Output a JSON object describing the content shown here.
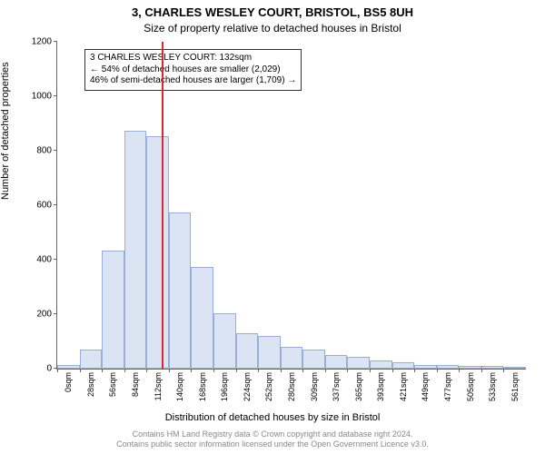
{
  "title_main": "3, CHARLES WESLEY COURT, BRISTOL, BS5 8UH",
  "title_sub": "Size of property relative to detached houses in Bristol",
  "ylabel": "Number of detached properties",
  "xlabel": "Distribution of detached houses by size in Bristol",
  "attribution_line1": "Contains HM Land Registry data © Crown copyright and database right 2024.",
  "attribution_line2": "Contains public sector information licensed under the Open Government Licence v3.0.",
  "chart": {
    "type": "histogram",
    "ylim": [
      0,
      1200
    ],
    "ytick_step": 200,
    "x_categories": [
      "0sqm",
      "28sqm",
      "56sqm",
      "84sqm",
      "112sqm",
      "140sqm",
      "168sqm",
      "196sqm",
      "224sqm",
      "252sqm",
      "280sqm",
      "309sqm",
      "337sqm",
      "365sqm",
      "393sqm",
      "421sqm",
      "449sqm",
      "477sqm",
      "505sqm",
      "533sqm",
      "561sqm"
    ],
    "bar_values": [
      15,
      70,
      435,
      875,
      855,
      575,
      375,
      205,
      130,
      120,
      80,
      70,
      50,
      45,
      30,
      25,
      15,
      15,
      10,
      10,
      8
    ],
    "bar_fill": "#dbe4f3",
    "bar_border": "#98aed6",
    "background": "#ffffff",
    "axis_color": "#666666",
    "vline_index": 4.7,
    "vline_color": "#d82a2e",
    "annotation": {
      "line1": "3 CHARLES WESLEY COURT: 132sqm",
      "line2": "← 54% of detached houses are smaller (2,029)",
      "line3": "46% of semi-detached houses are larger (1,709) →"
    }
  }
}
